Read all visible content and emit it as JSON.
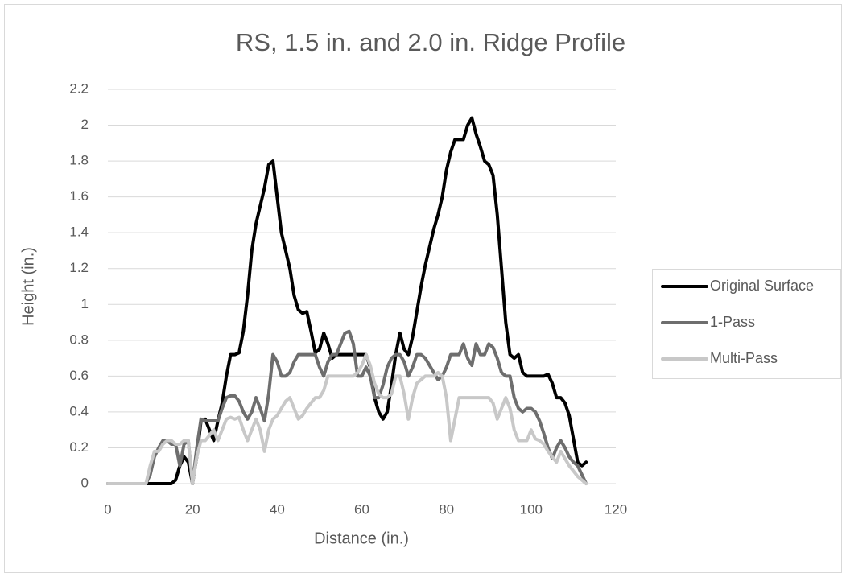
{
  "chart_data": {
    "type": "line",
    "title": "RS, 1.5 in. and 2.0 in. Ridge Profile",
    "xlabel": "Distance (in.)",
    "ylabel": "Height (in.)",
    "x": [
      0,
      1,
      2,
      3,
      4,
      5,
      6,
      7,
      8,
      9,
      10,
      11,
      12,
      13,
      14,
      15,
      16,
      17,
      18,
      19,
      20,
      21,
      22,
      23,
      24,
      25,
      26,
      27,
      28,
      29,
      30,
      31,
      32,
      33,
      34,
      35,
      36,
      37,
      38,
      39,
      40,
      41,
      42,
      43,
      44,
      45,
      46,
      47,
      48,
      49,
      50,
      51,
      52,
      53,
      54,
      55,
      56,
      57,
      58,
      59,
      60,
      61,
      62,
      63,
      64,
      65,
      66,
      67,
      68,
      69,
      70,
      71,
      72,
      73,
      74,
      75,
      76,
      77,
      78,
      79,
      80,
      81,
      82,
      83,
      84,
      85,
      86,
      87,
      88,
      89,
      90,
      91,
      92,
      93,
      94,
      95,
      96,
      97,
      98,
      99,
      100,
      101,
      102,
      103,
      104,
      105,
      106,
      107,
      108,
      109,
      110,
      111,
      112,
      113
    ],
    "series": [
      {
        "name": "Original Surface",
        "color": "#000000",
        "values": [
          0,
          0,
          0,
          0,
          0,
          0,
          0,
          0,
          0,
          0,
          0,
          0,
          0,
          0,
          0,
          0,
          0.02,
          0.1,
          0.15,
          0.12,
          0,
          0.15,
          0.35,
          0.36,
          0.3,
          0.24,
          0.35,
          0.45,
          0.6,
          0.72,
          0.72,
          0.73,
          0.85,
          1.05,
          1.3,
          1.45,
          1.55,
          1.65,
          1.78,
          1.8,
          1.6,
          1.4,
          1.3,
          1.2,
          1.05,
          0.97,
          0.95,
          0.96,
          0.85,
          0.73,
          0.75,
          0.84,
          0.78,
          0.7,
          0.72,
          0.72,
          0.72,
          0.72,
          0.72,
          0.72,
          0.72,
          0.72,
          0.65,
          0.48,
          0.4,
          0.36,
          0.4,
          0.55,
          0.72,
          0.84,
          0.75,
          0.72,
          0.82,
          0.96,
          1.1,
          1.22,
          1.32,
          1.42,
          1.5,
          1.6,
          1.75,
          1.85,
          1.92,
          1.92,
          1.92,
          2.0,
          2.04,
          1.95,
          1.88,
          1.8,
          1.78,
          1.72,
          1.5,
          1.2,
          0.9,
          0.72,
          0.7,
          0.72,
          0.62,
          0.6,
          0.6,
          0.6,
          0.6,
          0.6,
          0.61,
          0.56,
          0.48,
          0.48,
          0.45,
          0.38,
          0.25,
          0.12,
          0.1,
          0.12
        ]
      },
      {
        "name": "1-Pass",
        "color": "#6e6e6e",
        "values": [
          0,
          0,
          0,
          0,
          0,
          0,
          0,
          0,
          0,
          0,
          0.05,
          0.15,
          0.2,
          0.24,
          0.24,
          0.22,
          0.22,
          0.1,
          0.22,
          0.24,
          0,
          0.2,
          0.36,
          0.35,
          0.35,
          0.35,
          0.35,
          0.42,
          0.48,
          0.49,
          0.49,
          0.46,
          0.4,
          0.36,
          0.4,
          0.48,
          0.42,
          0.35,
          0.5,
          0.72,
          0.68,
          0.6,
          0.6,
          0.62,
          0.68,
          0.72,
          0.72,
          0.72,
          0.72,
          0.72,
          0.65,
          0.6,
          0.68,
          0.72,
          0.72,
          0.78,
          0.84,
          0.85,
          0.78,
          0.6,
          0.6,
          0.65,
          0.6,
          0.48,
          0.48,
          0.55,
          0.65,
          0.7,
          0.72,
          0.72,
          0.68,
          0.6,
          0.65,
          0.72,
          0.72,
          0.7,
          0.66,
          0.62,
          0.58,
          0.6,
          0.65,
          0.72,
          0.72,
          0.72,
          0.78,
          0.7,
          0.66,
          0.78,
          0.72,
          0.72,
          0.78,
          0.76,
          0.7,
          0.62,
          0.6,
          0.6,
          0.48,
          0.42,
          0.4,
          0.42,
          0.42,
          0.4,
          0.35,
          0.28,
          0.2,
          0.14,
          0.2,
          0.24,
          0.2,
          0.15,
          0.12,
          0.1,
          0.05,
          0
        ]
      },
      {
        "name": "Multi-Pass",
        "color": "#c8c8c8",
        "values": [
          0,
          0,
          0,
          0,
          0,
          0,
          0,
          0,
          0,
          0,
          0.1,
          0.18,
          0.18,
          0.22,
          0.24,
          0.24,
          0.22,
          0.22,
          0.24,
          0.24,
          0,
          0.15,
          0.24,
          0.24,
          0.27,
          0.3,
          0.24,
          0.3,
          0.36,
          0.37,
          0.36,
          0.37,
          0.3,
          0.24,
          0.3,
          0.36,
          0.3,
          0.18,
          0.3,
          0.36,
          0.38,
          0.42,
          0.46,
          0.48,
          0.42,
          0.36,
          0.38,
          0.42,
          0.45,
          0.48,
          0.48,
          0.52,
          0.6,
          0.6,
          0.6,
          0.6,
          0.6,
          0.6,
          0.6,
          0.62,
          0.66,
          0.72,
          0.66,
          0.56,
          0.5,
          0.48,
          0.48,
          0.5,
          0.6,
          0.6,
          0.5,
          0.36,
          0.48,
          0.56,
          0.58,
          0.6,
          0.6,
          0.6,
          0.62,
          0.6,
          0.48,
          0.24,
          0.36,
          0.48,
          0.48,
          0.48,
          0.48,
          0.48,
          0.48,
          0.48,
          0.48,
          0.45,
          0.36,
          0.42,
          0.48,
          0.42,
          0.3,
          0.24,
          0.24,
          0.24,
          0.3,
          0.25,
          0.24,
          0.22,
          0.18,
          0.15,
          0.12,
          0.18,
          0.14,
          0.1,
          0.07,
          0.04,
          0.02,
          0
        ]
      }
    ],
    "xlim": [
      0,
      120
    ],
    "xticks": [
      0,
      20,
      40,
      60,
      80,
      100,
      120
    ],
    "ylim": [
      0,
      2.2
    ],
    "yticks": [
      0,
      0.2,
      0.4,
      0.6,
      0.8,
      1,
      1.2,
      1.4,
      1.6,
      1.8,
      2,
      2.2
    ],
    "grid": true,
    "legend": "right"
  }
}
